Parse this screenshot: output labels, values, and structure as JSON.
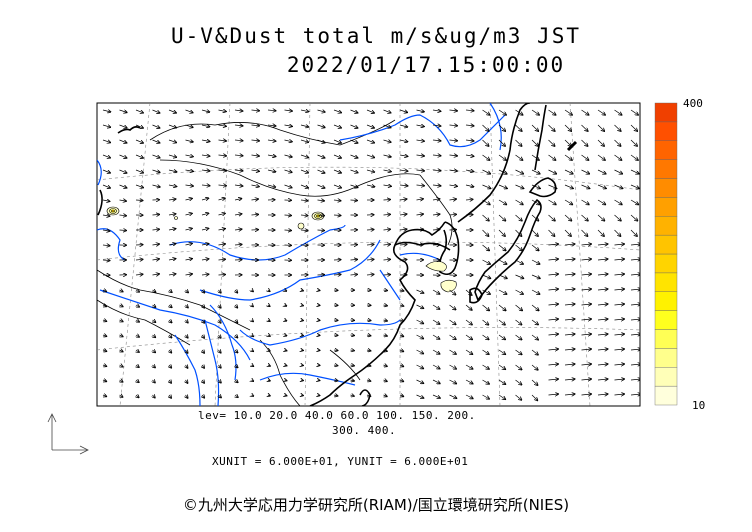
{
  "title": {
    "line1": "U-V&Dust total m/s&ug/m3 JST",
    "line2": "2022/01/17.15:00:00"
  },
  "legend": {
    "levels_line1": "lev= 10.0 20.0 40.0 60.0 100. 150. 200.",
    "levels_line2": "300. 400.",
    "unit_line": "XUNIT = 6.000E+01, YUNIT = 6.000E+01"
  },
  "colorbar": {
    "max_label": "400",
    "min_label": "10",
    "colors": [
      "#ffffdc",
      "#ffffb8",
      "#ffff8c",
      "#ffff55",
      "#ffff1e",
      "#fff200",
      "#ffe400",
      "#ffd400",
      "#ffc400",
      "#ffb200",
      "#ffa000",
      "#ff8c00",
      "#ff7800",
      "#ff6400",
      "#ff5000",
      "#f04000"
    ]
  },
  "map": {
    "region": "East Asia",
    "coastline_color": "#000000",
    "river_color": "#0050ff",
    "dust_color": "#ffffcc"
  },
  "copyright": "©九州大学応用力学研究所(RIAM)/国立環境研究所(NIES)"
}
